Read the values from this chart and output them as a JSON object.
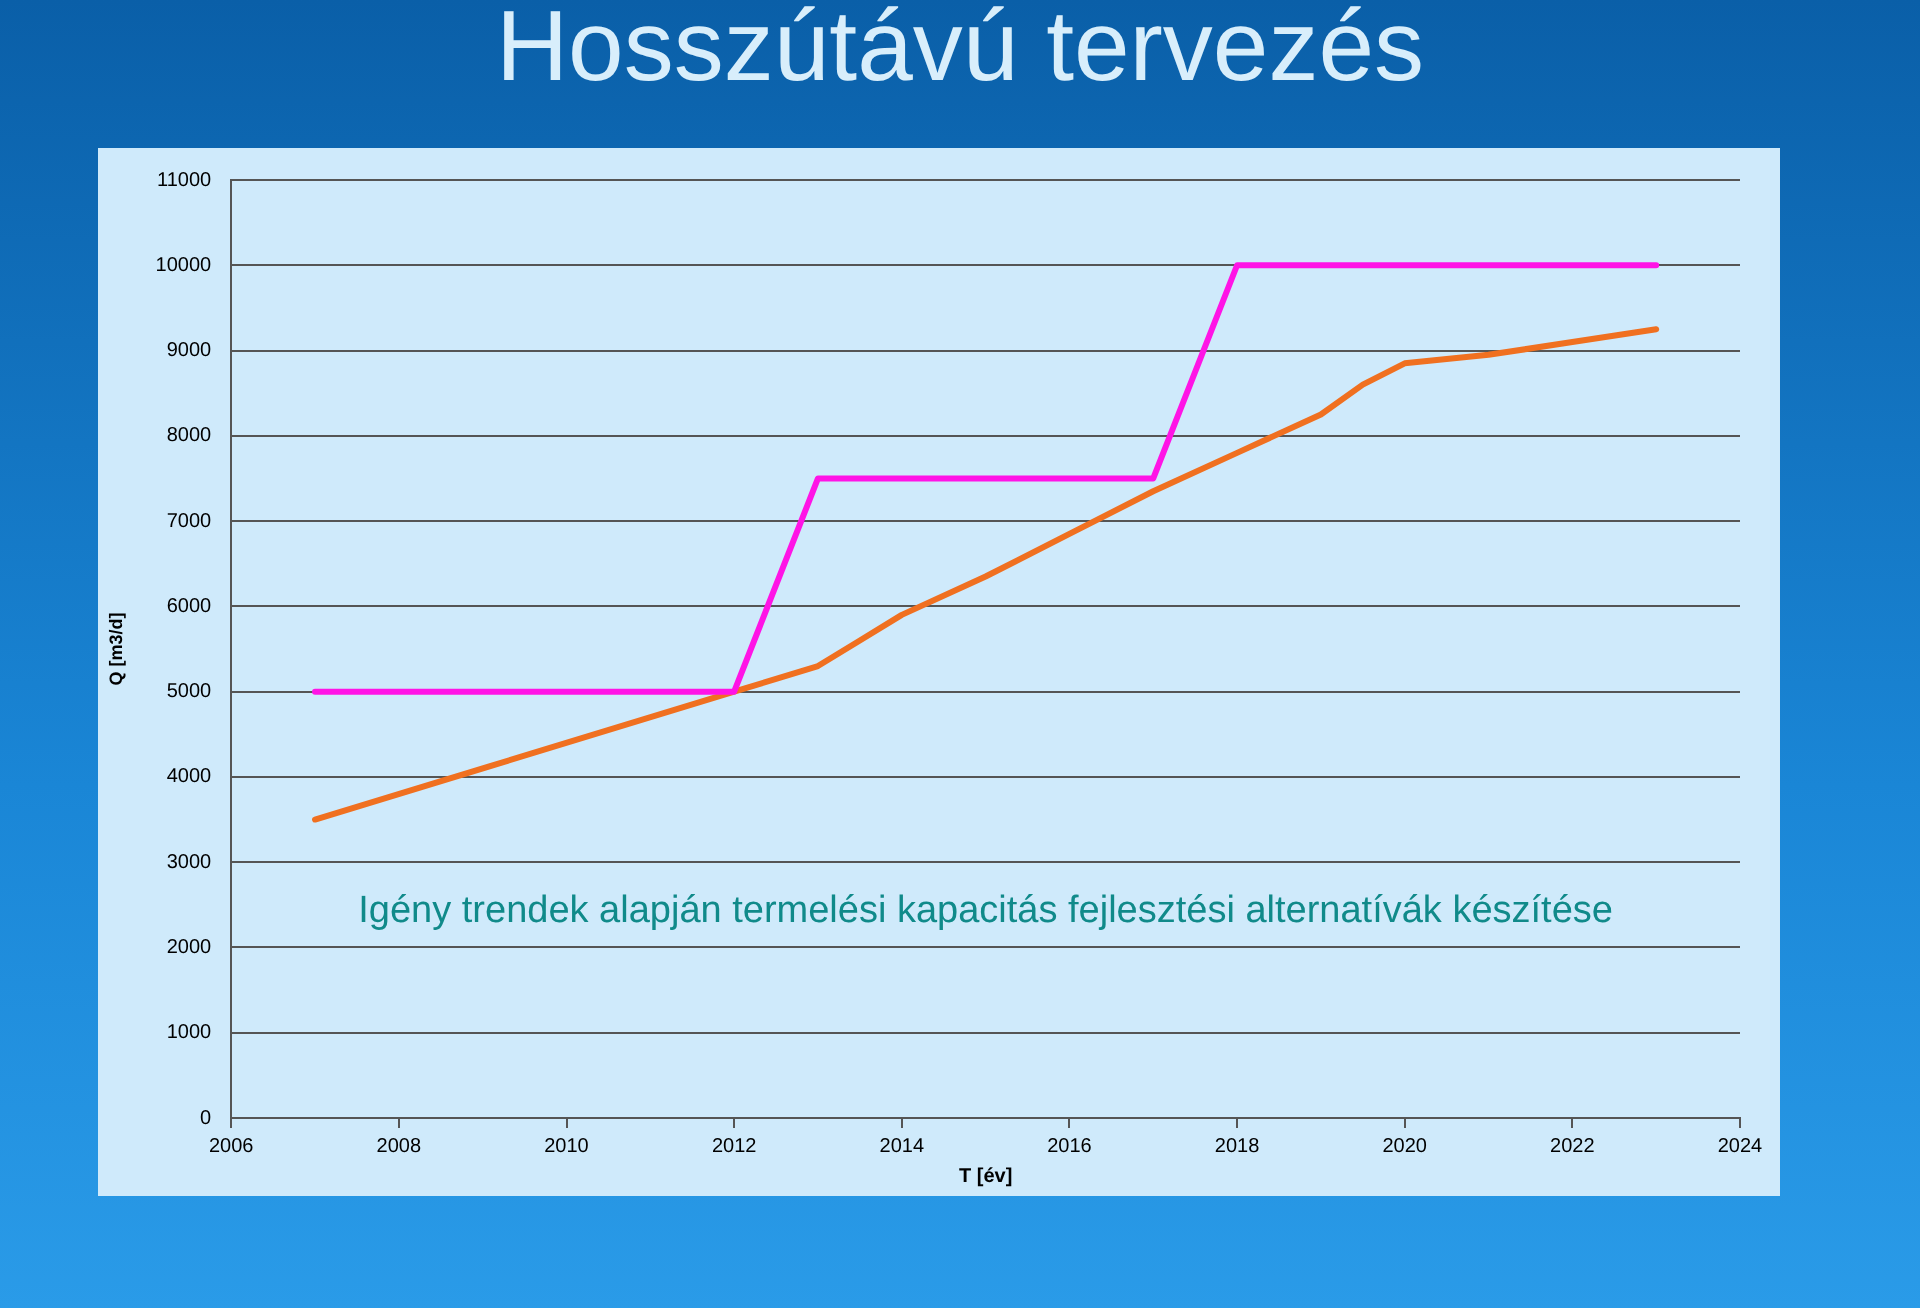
{
  "chart_data": {
    "type": "line",
    "title": "Hosszútávú tervezés",
    "xlabel": "T [év]",
    "ylabel": "Q [m3/d]",
    "annotations": [
      "Igény trendek alapján termelési kapacitás fejlesztési alternatívák készítése"
    ],
    "xlim": [
      2006,
      2024
    ],
    "xticks": [
      2006,
      2008,
      2010,
      2012,
      2014,
      2016,
      2018,
      2020,
      2022,
      2024
    ],
    "ylim": [
      0,
      11000
    ],
    "yticks": [
      0,
      1000,
      2000,
      3000,
      4000,
      5000,
      6000,
      7000,
      8000,
      9000,
      10000,
      11000
    ],
    "grid": "y",
    "legend": false,
    "marker": "none",
    "line_style": "solid",
    "series": [
      {
        "color": "#ff14e6",
        "x": [
          2007,
          2012,
          2013,
          2017,
          2018,
          2023
        ],
        "values": [
          5000,
          5000,
          7500,
          7500,
          10000,
          10000
        ]
      },
      {
        "color": "#f07020",
        "x": [
          2007,
          2012,
          2012.5,
          2013,
          2013.5,
          2014,
          2015,
          2016,
          2017,
          2018,
          2019,
          2019.5,
          2020,
          2020.5,
          2021,
          2022,
          2023
        ],
        "values": [
          3500,
          5000,
          5150,
          5300,
          5600,
          5900,
          6350,
          6850,
          7350,
          7800,
          8250,
          8600,
          8850,
          8900,
          8950,
          9100,
          9250
        ]
      }
    ]
  }
}
